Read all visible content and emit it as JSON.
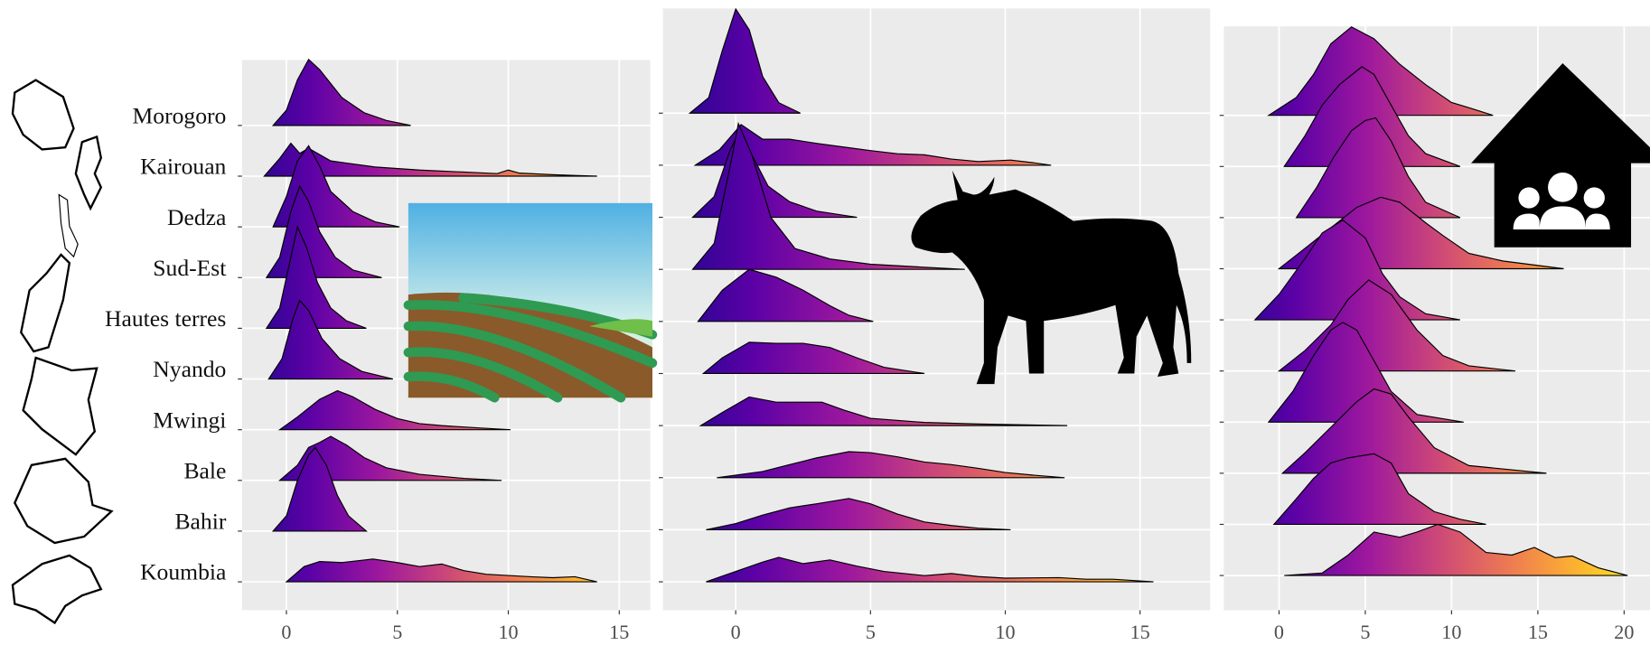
{
  "chart_data": [
    {
      "type": "ridgeline",
      "categories": [
        "Morogoro",
        "Kairouan",
        "Dedza",
        "Sud-Est",
        "Hautes terres",
        "Nyando",
        "Mwingi",
        "Bale",
        "Bahir",
        "Koumbia"
      ],
      "xlim": [
        -2,
        16.4
      ],
      "xticks": [
        0,
        5,
        10,
        15
      ],
      "grid": true,
      "colormap": [
        "#1b068c",
        "#5c01a6",
        "#9c179e",
        "#cc4778",
        "#ed7953",
        "#fdb42f",
        "#f0f921"
      ],
      "series": [
        {
          "x": [
            -0.6,
            0,
            0.5,
            1,
            1.5,
            2.5,
            3.5,
            4.5,
            5.6
          ],
          "values": [
            0,
            0.3,
            0.9,
            1.3,
            1.1,
            0.55,
            0.25,
            0.1,
            0
          ]
        },
        {
          "x": [
            -1,
            -0.3,
            0.2,
            0.6,
            1,
            2,
            4,
            6,
            8,
            9.5,
            10,
            10.5,
            12,
            14
          ],
          "values": [
            0,
            0.35,
            0.65,
            0.45,
            0.55,
            0.3,
            0.18,
            0.12,
            0.08,
            0.05,
            0.12,
            0.06,
            0.03,
            0
          ]
        },
        {
          "x": [
            -0.6,
            0,
            0.5,
            1,
            1.5,
            2,
            3,
            4,
            5.1
          ],
          "values": [
            0,
            0.6,
            1.3,
            1.6,
            1.2,
            0.7,
            0.3,
            0.1,
            0
          ]
        },
        {
          "x": [
            -0.9,
            -0.3,
            0.2,
            0.6,
            1,
            1.5,
            2.2,
            3,
            4.3
          ],
          "values": [
            0,
            0.4,
            1.3,
            1.8,
            1.5,
            0.9,
            0.4,
            0.15,
            0
          ]
        },
        {
          "x": [
            -0.9,
            -0.3,
            0.2,
            0.5,
            0.9,
            1.4,
            2,
            2.7,
            3.6
          ],
          "values": [
            0,
            0.4,
            1.4,
            2.0,
            1.6,
            0.9,
            0.4,
            0.15,
            0
          ]
        },
        {
          "x": [
            -0.8,
            -0.2,
            0.3,
            0.6,
            1,
            1.6,
            2.4,
            3.4,
            4.8
          ],
          "values": [
            0,
            0.4,
            1.2,
            1.55,
            1.35,
            0.8,
            0.4,
            0.15,
            0
          ]
        },
        {
          "x": [
            -0.3,
            0.5,
            1.5,
            2.3,
            3,
            4,
            5,
            6,
            7,
            8.5,
            10.1
          ],
          "values": [
            0,
            0.25,
            0.6,
            0.77,
            0.65,
            0.4,
            0.22,
            0.12,
            0.08,
            0.04,
            0
          ]
        },
        {
          "x": [
            -0.3,
            0.5,
            1,
            1.5,
            2,
            2.7,
            3.5,
            4.5,
            6,
            8,
            9.7
          ],
          "values": [
            0,
            0.3,
            0.65,
            0.75,
            0.87,
            0.7,
            0.45,
            0.25,
            0.12,
            0.04,
            0
          ]
        },
        {
          "x": [
            -0.6,
            0,
            0.5,
            1,
            1.3,
            1.8,
            2.3,
            2.8,
            3.6
          ],
          "values": [
            0,
            0.3,
            1.0,
            1.5,
            1.65,
            1.3,
            0.7,
            0.3,
            0
          ]
        },
        {
          "x": [
            0,
            0.8,
            1.5,
            2.5,
            3.9,
            5,
            6,
            7,
            8,
            9,
            11,
            12,
            13,
            14
          ],
          "values": [
            0,
            0.3,
            0.4,
            0.38,
            0.45,
            0.38,
            0.3,
            0.35,
            0.22,
            0.15,
            0.1,
            0.08,
            0.1,
            0
          ]
        }
      ]
    },
    {
      "type": "ridgeline",
      "xlim": [
        -2.7,
        17.6
      ],
      "xticks": [
        0,
        5,
        10,
        15
      ],
      "grid": true,
      "colormap": [
        "#1b068c",
        "#5c01a6",
        "#9c179e",
        "#cc4778",
        "#ed7953",
        "#fdb42f",
        "#f0f921"
      ],
      "series": [
        {
          "x": [
            -1.7,
            -1,
            -0.5,
            0,
            0.5,
            1,
            1.6,
            2.4
          ],
          "values": [
            0,
            0.3,
            1.2,
            2.0,
            1.6,
            0.7,
            0.2,
            0
          ]
        },
        {
          "x": [
            -1.5,
            -0.6,
            0.2,
            1,
            2,
            3,
            4,
            5,
            6,
            7,
            8,
            9,
            10.2,
            11,
            11.7
          ],
          "values": [
            0,
            0.3,
            0.78,
            0.5,
            0.5,
            0.42,
            0.35,
            0.28,
            0.22,
            0.2,
            0.12,
            0.07,
            0.1,
            0.05,
            0
          ]
        },
        {
          "x": [
            -1.6,
            -0.8,
            -0.2,
            0.1,
            0.6,
            1.2,
            2,
            3,
            4.5
          ],
          "values": [
            0,
            0.4,
            1.3,
            1.6,
            1.2,
            0.6,
            0.3,
            0.12,
            0
          ]
        },
        {
          "x": [
            -1.6,
            -0.8,
            -0.2,
            0.1,
            0.6,
            1.3,
            2.2,
            3.5,
            5,
            7,
            8.5
          ],
          "values": [
            0,
            0.5,
            2.0,
            2.8,
            2.2,
            1.0,
            0.4,
            0.2,
            0.1,
            0.04,
            0
          ]
        },
        {
          "x": [
            -1.4,
            -0.5,
            0.5,
            1.5,
            2.5,
            3.5,
            4.2,
            5.1
          ],
          "values": [
            0,
            0.6,
            1.0,
            0.85,
            0.6,
            0.3,
            0.12,
            0
          ]
        },
        {
          "x": [
            -1.2,
            -0.5,
            0.5,
            1.5,
            2.5,
            3.5,
            4.5,
            5.5,
            6.5,
            7
          ],
          "values": [
            0,
            0.3,
            0.6,
            0.58,
            0.58,
            0.5,
            0.3,
            0.12,
            0.04,
            0
          ]
        },
        {
          "x": [
            -1.3,
            -0.5,
            0.5,
            1.5,
            2.5,
            3.2,
            4,
            5,
            7,
            9,
            12.3
          ],
          "values": [
            0,
            0.25,
            0.55,
            0.45,
            0.45,
            0.45,
            0.3,
            0.14,
            0.06,
            0.03,
            0
          ]
        },
        {
          "x": [
            -0.7,
            1,
            2,
            3,
            4.2,
            5,
            6,
            7,
            8,
            9,
            10,
            11,
            12.2
          ],
          "values": [
            0,
            0.12,
            0.25,
            0.38,
            0.5,
            0.48,
            0.4,
            0.3,
            0.25,
            0.18,
            0.1,
            0.05,
            0
          ]
        },
        {
          "x": [
            -1.1,
            0,
            1,
            2,
            3,
            4.2,
            5,
            6,
            7,
            8,
            9,
            10.2
          ],
          "values": [
            0,
            0.12,
            0.28,
            0.42,
            0.5,
            0.6,
            0.5,
            0.3,
            0.15,
            0.08,
            0.03,
            0
          ]
        },
        {
          "x": [
            -1.1,
            0,
            1,
            1.6,
            2.5,
            3.5,
            4.5,
            5.5,
            7,
            8,
            9,
            10,
            12,
            13,
            14,
            15.5
          ],
          "values": [
            0,
            0.2,
            0.38,
            0.47,
            0.35,
            0.42,
            0.3,
            0.2,
            0.12,
            0.16,
            0.1,
            0.07,
            0.08,
            0.05,
            0.05,
            0
          ]
        }
      ]
    },
    {
      "type": "ridgeline",
      "xlim": [
        -3.2,
        21.5
      ],
      "xticks": [
        0,
        5,
        10,
        15,
        20
      ],
      "grid": true,
      "colormap": [
        "#1b068c",
        "#5c01a6",
        "#9c179e",
        "#cc4778",
        "#ed7953",
        "#fdb42f",
        "#f0f921"
      ],
      "series": [
        {
          "x": [
            -0.6,
            1,
            2,
            3,
            4.2,
            5.5,
            7,
            8.5,
            10,
            11,
            12.4
          ],
          "values": [
            0,
            0.35,
            0.8,
            1.4,
            1.73,
            1.5,
            1.0,
            0.6,
            0.25,
            0.15,
            0
          ]
        },
        {
          "x": [
            0.3,
            1.5,
            2.5,
            3.5,
            4.8,
            5.5,
            6.5,
            7.5,
            8.5,
            10.5
          ],
          "values": [
            0,
            0.6,
            1.2,
            1.6,
            1.95,
            1.8,
            1.2,
            0.6,
            0.25,
            0
          ]
        },
        {
          "x": [
            1,
            2.2,
            3.2,
            4.2,
            5,
            5.6,
            6.5,
            7.5,
            8.5,
            10.5
          ],
          "values": [
            0,
            0.6,
            1.2,
            1.7,
            1.9,
            1.95,
            1.5,
            0.8,
            0.3,
            0
          ]
        },
        {
          "x": [
            0,
            1.5,
            3,
            4.5,
            5.9,
            7,
            8.5,
            9.5,
            11,
            13,
            16.5
          ],
          "values": [
            0,
            0.4,
            0.8,
            1.2,
            1.4,
            1.3,
            0.9,
            0.65,
            0.3,
            0.15,
            0
          ]
        },
        {
          "x": [
            -1.4,
            0,
            1.5,
            2.5,
            3.7,
            5,
            6,
            7,
            8.5,
            10.5
          ],
          "values": [
            0,
            0.5,
            1.2,
            1.7,
            1.95,
            1.6,
            0.9,
            0.45,
            0.12,
            0
          ]
        },
        {
          "x": [
            0,
            1.5,
            3,
            4,
            5.2,
            6.5,
            8,
            9.5,
            11,
            13.7
          ],
          "values": [
            0,
            0.4,
            0.9,
            1.4,
            1.78,
            1.5,
            0.8,
            0.3,
            0.1,
            0
          ]
        },
        {
          "x": [
            -0.6,
            0.8,
            2,
            3,
            3.7,
            4.5,
            5.5,
            6.5,
            8,
            10.7
          ],
          "values": [
            0,
            0.6,
            1.3,
            1.8,
            1.95,
            1.8,
            1.2,
            0.6,
            0.15,
            0
          ]
        },
        {
          "x": [
            0.2,
            1.5,
            3,
            4.5,
            5.5,
            6.5,
            7.5,
            9,
            11,
            15.5
          ],
          "values": [
            0,
            0.4,
            0.9,
            1.4,
            1.65,
            1.55,
            1.1,
            0.5,
            0.15,
            0
          ]
        },
        {
          "x": [
            -0.3,
            1,
            2,
            3,
            4,
            5.5,
            6.5,
            7.5,
            9,
            10.5,
            12
          ],
          "values": [
            0,
            0.5,
            0.9,
            1.2,
            1.3,
            1.38,
            1.2,
            0.6,
            0.25,
            0.1,
            0
          ]
        },
        {
          "x": [
            0.3,
            2.5,
            4,
            5.5,
            7,
            8,
            9.2,
            10.5,
            12,
            13.5,
            14.8,
            16,
            17,
            18.5,
            20.2
          ],
          "values": [
            0,
            0.05,
            0.4,
            0.85,
            0.75,
            0.85,
            1.0,
            0.85,
            0.45,
            0.4,
            0.55,
            0.35,
            0.38,
            0.15,
            0
          ]
        }
      ]
    }
  ]
}
